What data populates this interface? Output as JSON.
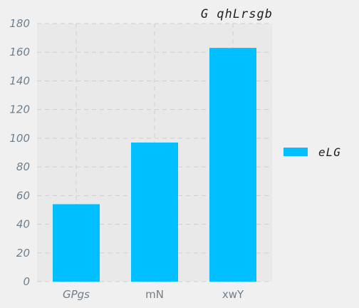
{
  "chart_data": {
    "type": "bar",
    "title": "G qhLrsgb",
    "categories": [
      "GPgs",
      "mN",
      "xwY"
    ],
    "category_italic": [
      true,
      false,
      false
    ],
    "series": [
      {
        "name": "eLG",
        "values": [
          54,
          97,
          163
        ]
      }
    ],
    "ylim": [
      0,
      180
    ],
    "yticks": [
      0,
      20,
      40,
      60,
      80,
      100,
      120,
      140,
      160,
      180
    ],
    "grid": true,
    "legend_position": "right",
    "bar_color": "#00bfff",
    "plot_background": "#e9e9e9",
    "grid_color": "#cfcfcf"
  }
}
